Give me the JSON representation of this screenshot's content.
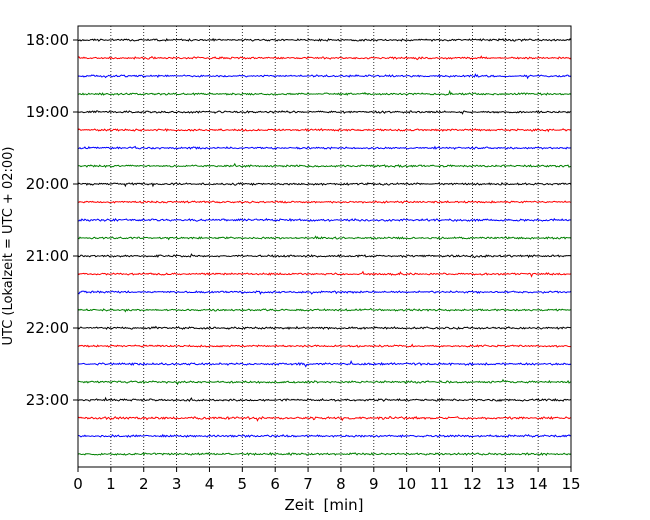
{
  "chart_data": {
    "type": "line",
    "title": "",
    "xlabel": "Zeit  [min]",
    "ylabel": "UTC (Lokalzeit = UTC + 02:00)",
    "xlim": [
      0,
      15
    ],
    "x_ticks": [
      "0",
      "1",
      "2",
      "3",
      "4",
      "5",
      "6",
      "7",
      "8",
      "9",
      "10",
      "11",
      "12",
      "13",
      "14",
      "15"
    ],
    "y_ticks": [
      "18:00",
      "19:00",
      "20:00",
      "21:00",
      "22:00",
      "23:00"
    ],
    "grid": "vertical dotted lines at each minute",
    "trace_interval_minutes": 15,
    "trace_start": "18:00",
    "trace_end": "23:45",
    "trace_count": 24,
    "trace_colors": [
      "#000000",
      "#ff0000",
      "#0000ff",
      "#008000"
    ],
    "series": [
      {
        "start": "18:00",
        "color": "#000000",
        "amplitude": 0.55
      },
      {
        "start": "18:15",
        "color": "#ff0000",
        "amplitude": 0.5
      },
      {
        "start": "18:30",
        "color": "#0000ff",
        "amplitude": 0.55
      },
      {
        "start": "18:45",
        "color": "#008000",
        "amplitude": 0.5
      },
      {
        "start": "19:00",
        "color": "#000000",
        "amplitude": 0.55
      },
      {
        "start": "19:15",
        "color": "#ff0000",
        "amplitude": 0.55
      },
      {
        "start": "19:30",
        "color": "#0000ff",
        "amplitude": 0.5
      },
      {
        "start": "19:45",
        "color": "#008000",
        "amplitude": 0.5
      },
      {
        "start": "20:00",
        "color": "#000000",
        "amplitude": 0.55
      },
      {
        "start": "20:15",
        "color": "#ff0000",
        "amplitude": 0.5
      },
      {
        "start": "20:30",
        "color": "#0000ff",
        "amplitude": 0.6
      },
      {
        "start": "20:45",
        "color": "#008000",
        "amplitude": 0.5
      },
      {
        "start": "21:00",
        "color": "#000000",
        "amplitude": 0.55
      },
      {
        "start": "21:15",
        "color": "#ff0000",
        "amplitude": 0.5
      },
      {
        "start": "21:30",
        "color": "#0000ff",
        "amplitude": 0.5
      },
      {
        "start": "21:45",
        "color": "#008000",
        "amplitude": 0.5
      },
      {
        "start": "22:00",
        "color": "#000000",
        "amplitude": 0.55
      },
      {
        "start": "22:15",
        "color": "#ff0000",
        "amplitude": 0.5
      },
      {
        "start": "22:30",
        "color": "#0000ff",
        "amplitude": 0.55
      },
      {
        "start": "22:45",
        "color": "#008000",
        "amplitude": 0.55
      },
      {
        "start": "23:00",
        "color": "#000000",
        "amplitude": 0.55
      },
      {
        "start": "23:15",
        "color": "#ff0000",
        "amplitude": 0.6
      },
      {
        "start": "23:30",
        "color": "#0000ff",
        "amplitude": 0.55
      },
      {
        "start": "23:45",
        "color": "#008000",
        "amplitude": 0.55
      }
    ]
  }
}
